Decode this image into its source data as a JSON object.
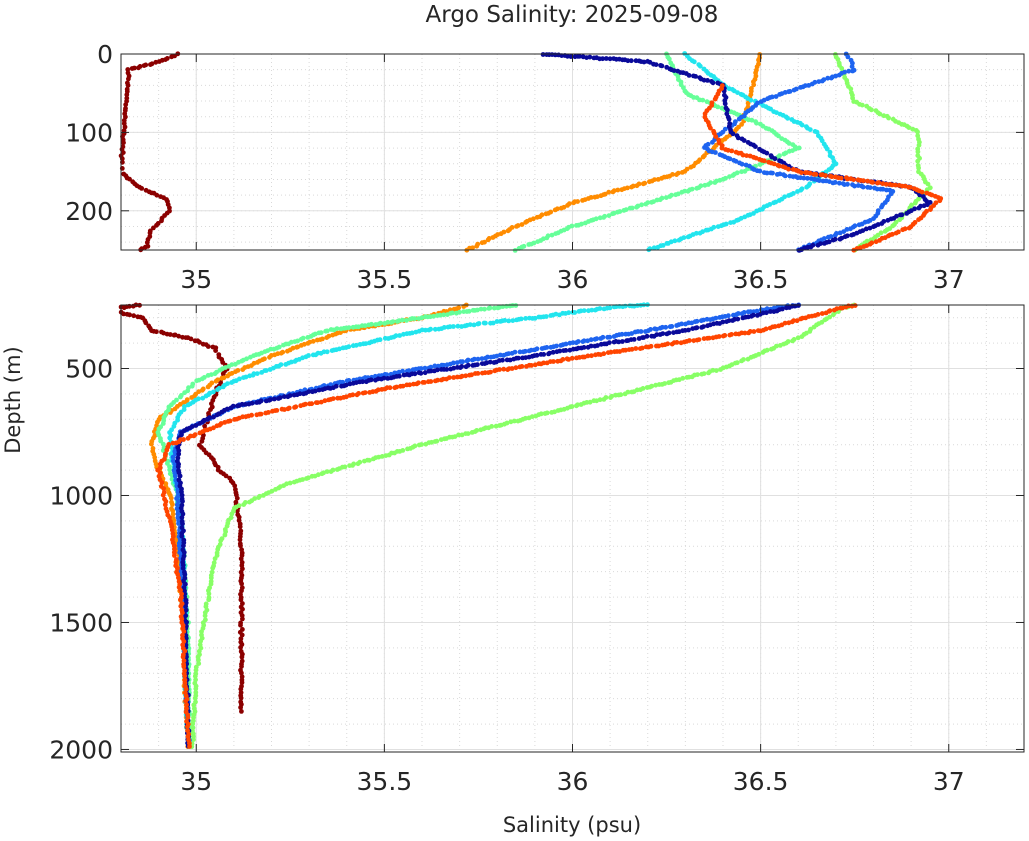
{
  "chart_data": {
    "type": "scatter",
    "title": "Argo Salinity: 2025-09-08",
    "xlabel": "Salinity (psu)",
    "ylabel": "Depth (m)",
    "xlim": [
      34.8,
      37.2
    ],
    "grid": true,
    "panels": [
      {
        "name": "upper",
        "ylim": [
          0,
          250
        ],
        "y_ticks": [
          0,
          100,
          200
        ],
        "y_tick_labels": [
          "0",
          "100",
          "200"
        ],
        "x_ticks": [
          35,
          35.5,
          36,
          36.5,
          37
        ],
        "x_tick_labels": [
          "35",
          "35.5",
          "36",
          "36.5",
          "37"
        ]
      },
      {
        "name": "lower",
        "ylim": [
          250,
          2010
        ],
        "y_ticks": [
          500,
          1000,
          1500,
          2000
        ],
        "y_tick_labels": [
          "500",
          "1000",
          "1500",
          "2000"
        ],
        "x_ticks": [
          35,
          35.5,
          36,
          36.5,
          37
        ],
        "x_tick_labels": [
          "35",
          "35.5",
          "36",
          "36.5",
          "37"
        ]
      }
    ],
    "series": [
      {
        "name": "profile-dark-red",
        "color": "#8b0000",
        "points": [
          [
            34.95,
            0
          ],
          [
            34.9,
            10
          ],
          [
            34.82,
            20
          ],
          [
            34.8,
            150
          ],
          [
            34.85,
            170
          ],
          [
            34.92,
            185
          ],
          [
            34.93,
            200
          ],
          [
            34.88,
            225
          ],
          [
            34.87,
            245
          ],
          [
            34.85,
            250
          ],
          [
            34.8,
            260
          ],
          [
            34.8,
            280
          ],
          [
            34.86,
            300
          ],
          [
            34.88,
            350
          ],
          [
            34.98,
            380
          ],
          [
            35.05,
            420
          ],
          [
            35.08,
            500
          ],
          [
            35.05,
            600
          ],
          [
            35.03,
            700
          ],
          [
            35.01,
            800
          ],
          [
            35.04,
            850
          ],
          [
            35.06,
            900
          ],
          [
            35.1,
            950
          ],
          [
            35.11,
            1050
          ],
          [
            35.12,
            1200
          ],
          [
            35.12,
            1400
          ],
          [
            35.12,
            1600
          ],
          [
            35.12,
            1700
          ],
          [
            35.12,
            1860
          ]
        ]
      },
      {
        "name": "profile-orange",
        "color": "#ff8c00",
        "points": [
          [
            36.5,
            0
          ],
          [
            36.48,
            40
          ],
          [
            36.45,
            90
          ],
          [
            36.3,
            150
          ],
          [
            36.0,
            190
          ],
          [
            35.85,
            220
          ],
          [
            35.72,
            250
          ],
          [
            35.7,
            260
          ],
          [
            35.6,
            300
          ],
          [
            35.4,
            350
          ],
          [
            35.2,
            450
          ],
          [
            35.05,
            550
          ],
          [
            34.95,
            650
          ],
          [
            34.9,
            700
          ],
          [
            34.88,
            800
          ],
          [
            34.9,
            900
          ],
          [
            34.93,
            1000
          ],
          [
            34.95,
            1200
          ],
          [
            34.96,
            1400
          ],
          [
            34.97,
            1600
          ],
          [
            34.97,
            1800
          ],
          [
            34.98,
            2000
          ]
        ]
      },
      {
        "name": "profile-spring-green",
        "color": "#66ff99",
        "points": [
          [
            36.25,
            0
          ],
          [
            36.3,
            50
          ],
          [
            36.5,
            90
          ],
          [
            36.6,
            120
          ],
          [
            36.4,
            160
          ],
          [
            36.2,
            190
          ],
          [
            36.0,
            220
          ],
          [
            35.85,
            250
          ],
          [
            35.8,
            260
          ],
          [
            35.6,
            300
          ],
          [
            35.35,
            350
          ],
          [
            35.15,
            450
          ],
          [
            35.0,
            550
          ],
          [
            34.93,
            650
          ],
          [
            34.9,
            750
          ],
          [
            34.92,
            850
          ],
          [
            34.95,
            1000
          ],
          [
            34.97,
            1300
          ],
          [
            34.98,
            1600
          ],
          [
            34.98,
            2000
          ]
        ]
      },
      {
        "name": "profile-light-green",
        "color": "#88ff66",
        "points": [
          [
            36.7,
            0
          ],
          [
            36.75,
            60
          ],
          [
            36.92,
            100
          ],
          [
            36.92,
            150
          ],
          [
            36.95,
            170
          ],
          [
            36.85,
            220
          ],
          [
            36.75,
            250
          ],
          [
            36.72,
            260
          ],
          [
            36.6,
            380
          ],
          [
            36.4,
            500
          ],
          [
            36.0,
            650
          ],
          [
            35.6,
            800
          ],
          [
            35.25,
            950
          ],
          [
            35.1,
            1050
          ],
          [
            35.05,
            1250
          ],
          [
            35.02,
            1500
          ],
          [
            35.0,
            1700
          ],
          [
            34.99,
            2000
          ]
        ]
      },
      {
        "name": "profile-cyan",
        "color": "#22e5ee",
        "points": [
          [
            36.3,
            0
          ],
          [
            36.4,
            40
          ],
          [
            36.65,
            100
          ],
          [
            36.7,
            140
          ],
          [
            36.62,
            170
          ],
          [
            36.45,
            210
          ],
          [
            36.2,
            250
          ],
          [
            36.1,
            260
          ],
          [
            35.9,
            300
          ],
          [
            35.6,
            350
          ],
          [
            35.3,
            450
          ],
          [
            35.1,
            550
          ],
          [
            34.97,
            650
          ],
          [
            34.93,
            750
          ],
          [
            34.94,
            900
          ],
          [
            34.96,
            1100
          ],
          [
            34.97,
            1400
          ],
          [
            34.97,
            1700
          ],
          [
            34.98,
            2000
          ]
        ]
      },
      {
        "name": "profile-mid-blue",
        "color": "#1e64f0",
        "points": [
          [
            36.73,
            0
          ],
          [
            36.75,
            20
          ],
          [
            36.5,
            60
          ],
          [
            36.35,
            120
          ],
          [
            36.5,
            150
          ],
          [
            36.85,
            175
          ],
          [
            36.8,
            210
          ],
          [
            36.6,
            250
          ],
          [
            36.5,
            270
          ],
          [
            36.2,
            350
          ],
          [
            35.8,
            450
          ],
          [
            35.4,
            550
          ],
          [
            35.1,
            650
          ],
          [
            34.96,
            750
          ],
          [
            34.94,
            850
          ],
          [
            34.95,
            1000
          ],
          [
            34.96,
            1300
          ],
          [
            34.97,
            1600
          ],
          [
            34.98,
            2000
          ]
        ]
      },
      {
        "name": "profile-dark-blue",
        "color": "#0a0a9a",
        "points": [
          [
            35.92,
            0
          ],
          [
            36.2,
            10
          ],
          [
            36.4,
            40
          ],
          [
            36.42,
            100
          ],
          [
            36.6,
            150
          ],
          [
            36.9,
            170
          ],
          [
            36.95,
            190
          ],
          [
            36.75,
            230
          ],
          [
            36.6,
            250
          ],
          [
            36.55,
            270
          ],
          [
            36.3,
            350
          ],
          [
            35.9,
            450
          ],
          [
            35.45,
            550
          ],
          [
            35.1,
            650
          ],
          [
            34.96,
            750
          ],
          [
            34.95,
            850
          ],
          [
            34.96,
            1000
          ],
          [
            34.97,
            1400
          ],
          [
            34.98,
            2000
          ]
        ]
      },
      {
        "name": "profile-red-orange",
        "color": "#ff4500",
        "points": [
          [
            36.4,
            40
          ],
          [
            36.35,
            80
          ],
          [
            36.4,
            120
          ],
          [
            36.6,
            150
          ],
          [
            36.9,
            170
          ],
          [
            36.98,
            185
          ],
          [
            36.9,
            220
          ],
          [
            36.75,
            250
          ],
          [
            36.72,
            260
          ],
          [
            36.5,
            350
          ],
          [
            36.0,
            460
          ],
          [
            35.5,
            580
          ],
          [
            35.1,
            700
          ],
          [
            34.93,
            800
          ],
          [
            34.9,
            900
          ],
          [
            34.93,
            1100
          ],
          [
            34.96,
            1400
          ],
          [
            34.97,
            1700
          ],
          [
            34.98,
            2000
          ]
        ]
      }
    ]
  }
}
